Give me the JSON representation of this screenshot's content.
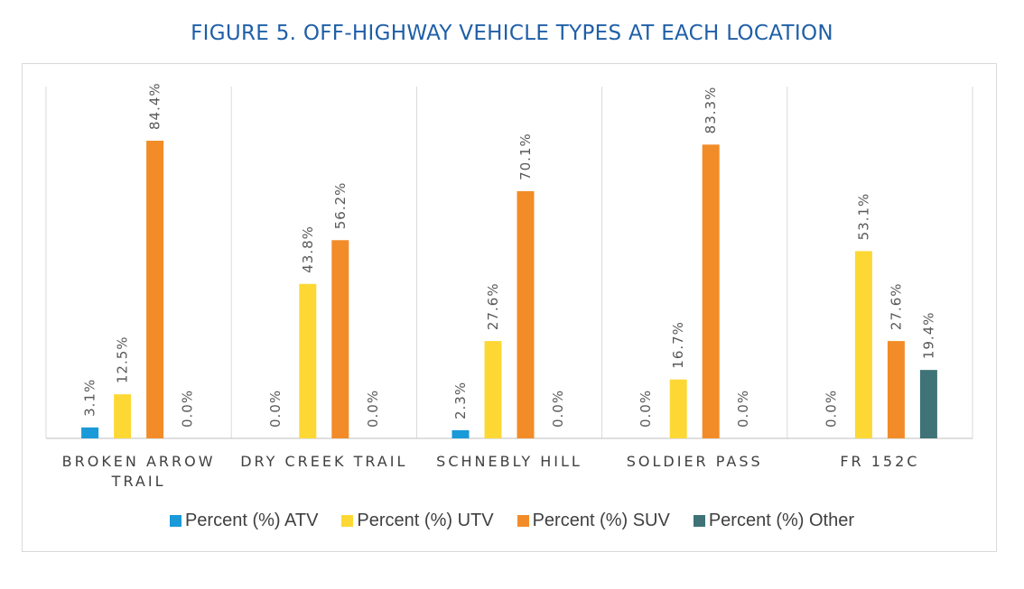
{
  "title": "FIGURE 5. OFF-HIGHWAY VEHICLE TYPES AT EACH LOCATION",
  "chart_data": {
    "type": "bar",
    "title": "FIGURE 5. OFF-HIGHWAY VEHICLE TYPES AT EACH LOCATION",
    "categories": [
      [
        "BROKEN ARROW",
        "TRAIL"
      ],
      [
        "DRY CREEK TRAIL"
      ],
      [
        "SCHNEBLY HILL"
      ],
      [
        "SOLDIER PASS"
      ],
      [
        "FR 152C"
      ]
    ],
    "series": [
      {
        "name": "Percent (%) ATV",
        "color": "#1a9ad9",
        "values": [
          3.1,
          0.0,
          2.3,
          0.0,
          0.0
        ],
        "labels": [
          "3.1%",
          "0.0%",
          "2.3%",
          "0.0%",
          "0.0%"
        ]
      },
      {
        "name": "Percent (%) UTV",
        "color": "#fdd835",
        "values": [
          12.5,
          43.8,
          27.6,
          16.7,
          53.1
        ],
        "labels": [
          "12.5%",
          "43.8%",
          "27.6%",
          "16.7%",
          "53.1%"
        ]
      },
      {
        "name": "Percent (%) SUV",
        "color": "#f28c28",
        "values": [
          84.4,
          56.2,
          70.1,
          83.3,
          27.6
        ],
        "labels": [
          "84.4%",
          "56.2%",
          "70.1%",
          "83.3%",
          "27.6%"
        ]
      },
      {
        "name": "Percent (%) Other",
        "color": "#3f7377",
        "values": [
          0.0,
          0.0,
          0.0,
          0.0,
          19.4
        ],
        "labels": [
          "0.0%",
          "0.0%",
          "0.0%",
          "0.0%",
          "19.4%"
        ]
      }
    ],
    "ylim": [
      0,
      86
    ],
    "legend_position": "bottom",
    "title_color": "#1f5fa8"
  }
}
